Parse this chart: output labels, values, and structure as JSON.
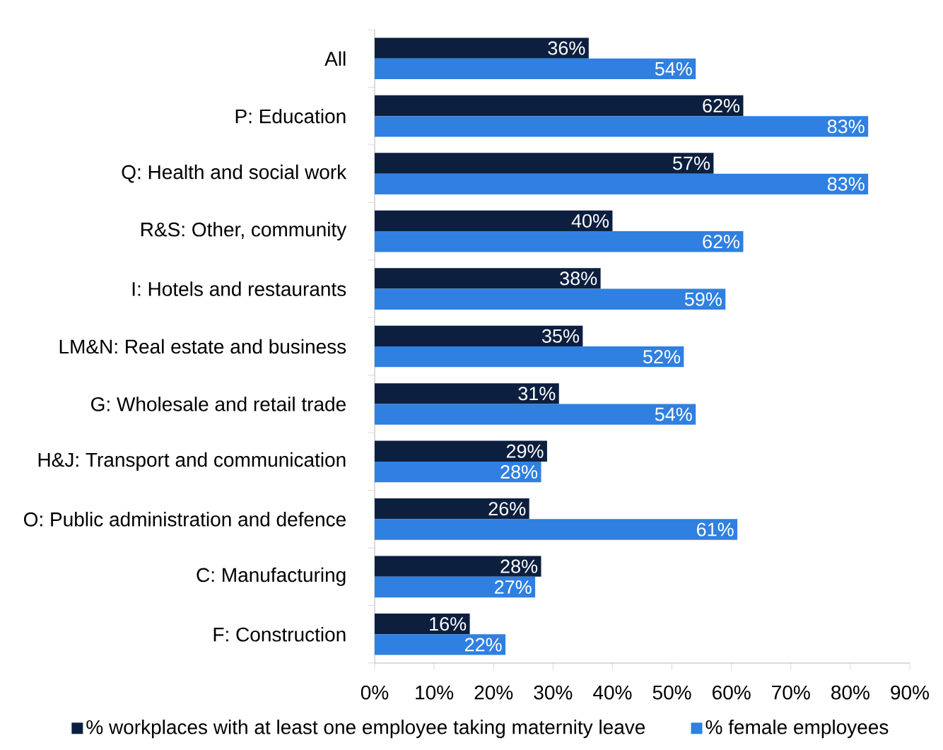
{
  "chart_data": {
    "type": "bar",
    "orientation": "horizontal",
    "categories": [
      "All",
      "P: Education",
      "Q: Health and social work",
      "R&S: Other, community",
      "I: Hotels and restaurants",
      "LM&N: Real estate and business",
      "G: Wholesale and retail trade",
      "H&J: Transport and communication",
      "O: Public administration and defence",
      "C: Manufacturing",
      "F: Construction"
    ],
    "series": [
      {
        "name": "% workplaces with at least one employee taking maternity leave",
        "color": "#0c1f3f",
        "values": [
          36,
          62,
          57,
          40,
          38,
          35,
          31,
          29,
          26,
          28,
          16
        ],
        "value_labels": [
          "36%",
          "62%",
          "57%",
          "40%",
          "38%",
          "35%",
          "31%",
          "29%",
          "26%",
          "28%",
          "16%"
        ]
      },
      {
        "name": "% female employees",
        "color": "#2f80e0",
        "values": [
          54,
          83,
          83,
          62,
          59,
          52,
          54,
          28,
          61,
          27,
          22
        ],
        "value_labels": [
          "54%",
          "83%",
          "83%",
          "62%",
          "59%",
          "52%",
          "54%",
          "28%",
          "61%",
          "27%",
          "22%"
        ]
      }
    ],
    "xlim": [
      0,
      90
    ],
    "xticks": [
      {
        "value": 0,
        "label": "0%"
      },
      {
        "value": 10,
        "label": "10%"
      },
      {
        "value": 20,
        "label": "20%"
      },
      {
        "value": 30,
        "label": "30%"
      },
      {
        "value": 40,
        "label": "40%"
      },
      {
        "value": 50,
        "label": "50%"
      },
      {
        "value": 60,
        "label": "60%"
      },
      {
        "value": 70,
        "label": "70%"
      },
      {
        "value": 80,
        "label": "80%"
      },
      {
        "value": 90,
        "label": "90%"
      }
    ],
    "legend": "bottom"
  }
}
